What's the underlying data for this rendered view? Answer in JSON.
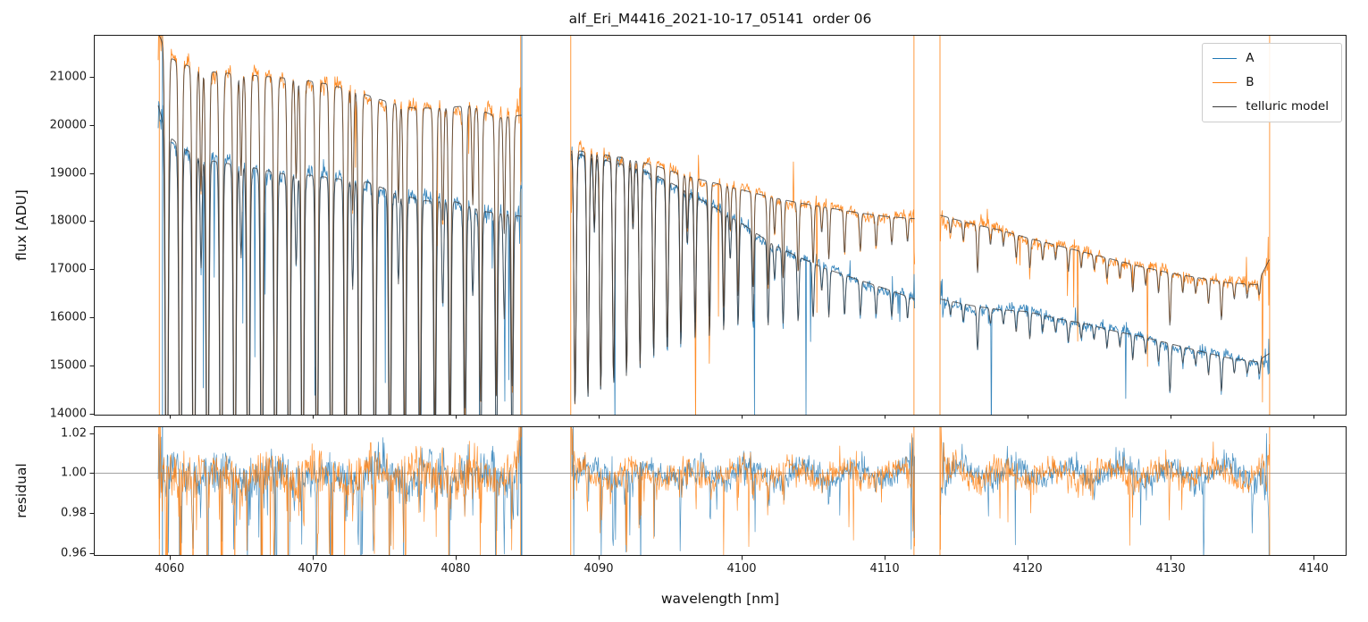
{
  "chart_data": {
    "type": "line",
    "title": "alf_Eri_M4416_2021-10-17_05141  order 06",
    "xlabel": "wavelength [nm]",
    "xlim": [
      4054.7,
      4142.3
    ],
    "xticks": [
      {
        "v": 4060,
        "label": "4060"
      },
      {
        "v": 4070,
        "label": "4070"
      },
      {
        "v": 4080,
        "label": "4080"
      },
      {
        "v": 4090,
        "label": "4090"
      },
      {
        "v": 4100,
        "label": "4100"
      },
      {
        "v": 4110,
        "label": "4110"
      },
      {
        "v": 4120,
        "label": "4120"
      },
      {
        "v": 4130,
        "label": "4130"
      },
      {
        "v": 4140,
        "label": "4140"
      }
    ],
    "panels": [
      {
        "ylabel": "flux [ADU]",
        "ylim": [
          13960,
          21870
        ],
        "yticks": [
          {
            "v": 14000,
            "label": "14000"
          },
          {
            "v": 15000,
            "label": "15000"
          },
          {
            "v": 16000,
            "label": "16000"
          },
          {
            "v": 17000,
            "label": "17000"
          },
          {
            "v": 18000,
            "label": "18000"
          },
          {
            "v": 19000,
            "label": "19000"
          },
          {
            "v": 20000,
            "label": "20000"
          },
          {
            "v": 21000,
            "label": "21000"
          }
        ]
      },
      {
        "ylabel": "residual",
        "ylim": [
          0.9585,
          1.0235
        ],
        "yticks": [
          {
            "v": 0.96,
            "label": "0.96"
          },
          {
            "v": 0.98,
            "label": "0.98"
          },
          {
            "v": 1.0,
            "label": "1.00"
          },
          {
            "v": 1.02,
            "label": "1.02"
          }
        ],
        "hline": 1.0,
        "hline_color": "#888888"
      }
    ],
    "legend": [
      {
        "label": "A",
        "color": "#1f77b4"
      },
      {
        "label": "B",
        "color": "#ff7f0e"
      },
      {
        "label": "telluric model",
        "color": "#3a3a3a"
      }
    ],
    "segments": [
      {
        "x0": 4059.2,
        "x1": 4084.6
      },
      {
        "x0": 4088.1,
        "x1": 4112.1
      },
      {
        "x0": 4113.9,
        "x1": 4136.9
      }
    ],
    "series": [
      {
        "name": "A",
        "color": "#1f77b4",
        "continuum": [
          [
            4059.2,
            20400
          ],
          [
            4059.8,
            19800
          ],
          [
            4061,
            19500
          ],
          [
            4063,
            19250
          ],
          [
            4066,
            19100
          ],
          [
            4068,
            18980
          ],
          [
            4070,
            18950
          ],
          [
            4072,
            18870
          ],
          [
            4074,
            18800
          ],
          [
            4076,
            18550
          ],
          [
            4078,
            18420
          ],
          [
            4080,
            18400
          ],
          [
            4082,
            18200
          ],
          [
            4084.6,
            18100
          ],
          [
            4088.1,
            19420
          ],
          [
            4090,
            19300
          ],
          [
            4092,
            19150
          ],
          [
            4094,
            18950
          ],
          [
            4096,
            18650
          ],
          [
            4098,
            18300
          ],
          [
            4100,
            17950
          ],
          [
            4102,
            17550
          ],
          [
            4104,
            17250
          ],
          [
            4106,
            17000
          ],
          [
            4108,
            16800
          ],
          [
            4110,
            16600
          ],
          [
            4112.1,
            16380
          ],
          [
            4113.9,
            16380
          ],
          [
            4116,
            16250
          ],
          [
            4118,
            16160
          ],
          [
            4120,
            16120
          ],
          [
            4122,
            15980
          ],
          [
            4124,
            15870
          ],
          [
            4126,
            15720
          ],
          [
            4128,
            15600
          ],
          [
            4130,
            15450
          ],
          [
            4132,
            15300
          ],
          [
            4134,
            15160
          ],
          [
            4136,
            15080
          ],
          [
            4136.9,
            15250
          ]
        ]
      },
      {
        "name": "B",
        "color": "#ff7f0e",
        "continuum": [
          [
            4059.2,
            21900
          ],
          [
            4060,
            21400
          ],
          [
            4061,
            21250
          ],
          [
            4063,
            21100
          ],
          [
            4065,
            21050
          ],
          [
            4067,
            21000
          ],
          [
            4069,
            20950
          ],
          [
            4071,
            20850
          ],
          [
            4073,
            20700
          ],
          [
            4075,
            20500
          ],
          [
            4077,
            20350
          ],
          [
            4079,
            20350
          ],
          [
            4081,
            20400
          ],
          [
            4083,
            20150
          ],
          [
            4084.6,
            20200
          ],
          [
            4088.1,
            19480
          ],
          [
            4090,
            19400
          ],
          [
            4092,
            19300
          ],
          [
            4094,
            19150
          ],
          [
            4096,
            18950
          ],
          [
            4098,
            18800
          ],
          [
            4100,
            18650
          ],
          [
            4102,
            18500
          ],
          [
            4104,
            18380
          ],
          [
            4106,
            18280
          ],
          [
            4108,
            18180
          ],
          [
            4110,
            18100
          ],
          [
            4112.1,
            18050
          ],
          [
            4113.9,
            18120
          ],
          [
            4116,
            17950
          ],
          [
            4118,
            17820
          ],
          [
            4120,
            17650
          ],
          [
            4122,
            17500
          ],
          [
            4124,
            17350
          ],
          [
            4126,
            17200
          ],
          [
            4128,
            17050
          ],
          [
            4130,
            16920
          ],
          [
            4132,
            16820
          ],
          [
            4134,
            16720
          ],
          [
            4136,
            16680
          ],
          [
            4136.9,
            17200
          ]
        ]
      }
    ],
    "telluric_lines": [
      [
        4059.8,
        0.5
      ],
      [
        4060.75,
        0.48
      ],
      [
        4061.7,
        0.5
      ],
      [
        4062.65,
        0.46
      ],
      [
        4063.6,
        0.48
      ],
      [
        4064.55,
        0.45
      ],
      [
        4065.5,
        0.47
      ],
      [
        4066.45,
        0.44
      ],
      [
        4067.4,
        0.45
      ],
      [
        4068.35,
        0.43
      ],
      [
        4069.3,
        0.44
      ],
      [
        4070.3,
        0.42
      ],
      [
        4071.3,
        0.43
      ],
      [
        4072.3,
        0.41
      ],
      [
        4073.3,
        0.42
      ],
      [
        4074.35,
        0.4
      ],
      [
        4075.4,
        0.38
      ],
      [
        4076.45,
        0.36
      ],
      [
        4077.5,
        0.35
      ],
      [
        4078.55,
        0.33
      ],
      [
        4079.6,
        0.32
      ],
      [
        4080.65,
        0.31
      ],
      [
        4081.75,
        0.3
      ],
      [
        4082.85,
        0.29
      ],
      [
        4083.95,
        0.28
      ],
      [
        4062.2,
        0.12
      ],
      [
        4065.0,
        0.1
      ],
      [
        4068.85,
        0.1
      ],
      [
        4072.8,
        0.12
      ],
      [
        4076.0,
        0.1
      ],
      [
        4079.1,
        0.12
      ],
      [
        4081.2,
        0.1
      ],
      [
        4083.4,
        0.12
      ],
      [
        4088.35,
        0.27
      ],
      [
        4089.25,
        0.26
      ],
      [
        4090.15,
        0.25
      ],
      [
        4091.05,
        0.24
      ],
      [
        4091.95,
        0.23
      ],
      [
        4092.9,
        0.215
      ],
      [
        4093.85,
        0.2
      ],
      [
        4094.8,
        0.19
      ],
      [
        4095.75,
        0.175
      ],
      [
        4096.75,
        0.16
      ],
      [
        4097.75,
        0.15
      ],
      [
        4098.75,
        0.135
      ],
      [
        4099.75,
        0.12
      ],
      [
        4100.8,
        0.11
      ],
      [
        4101.85,
        0.1
      ],
      [
        4102.9,
        0.088
      ],
      [
        4103.95,
        0.078
      ],
      [
        4105.0,
        0.068
      ],
      [
        4106.1,
        0.058
      ],
      [
        4107.2,
        0.05
      ],
      [
        4108.3,
        0.043
      ],
      [
        4109.4,
        0.037
      ],
      [
        4110.5,
        0.032
      ],
      [
        4111.6,
        0.028
      ],
      [
        4089.7,
        0.08
      ],
      [
        4092.4,
        0.07
      ],
      [
        4096.2,
        0.06
      ],
      [
        4099.2,
        0.05
      ],
      [
        4102.3,
        0.04
      ],
      [
        4105.6,
        0.03
      ],
      [
        4114.6,
        0.018
      ],
      [
        4115.5,
        0.022
      ],
      [
        4116.5,
        0.055
      ],
      [
        4117.4,
        0.02
      ],
      [
        4118.3,
        0.018
      ],
      [
        4119.2,
        0.028
      ],
      [
        4120.15,
        0.035
      ],
      [
        4121.05,
        0.022
      ],
      [
        4121.95,
        0.018
      ],
      [
        4122.85,
        0.028
      ],
      [
        4123.75,
        0.02
      ],
      [
        4124.65,
        0.018
      ],
      [
        4125.55,
        0.025
      ],
      [
        4126.45,
        0.02
      ],
      [
        4127.35,
        0.034
      ],
      [
        4128.25,
        0.022
      ],
      [
        4129.15,
        0.028
      ],
      [
        4129.95,
        0.065
      ],
      [
        4130.85,
        0.022
      ],
      [
        4131.75,
        0.02
      ],
      [
        4132.65,
        0.03
      ],
      [
        4133.55,
        0.048
      ],
      [
        4134.45,
        0.02
      ],
      [
        4135.35,
        0.018
      ],
      [
        4136.2,
        0.02
      ]
    ],
    "edge_spikes": [
      {
        "x": 4059.28,
        "color": "#ff7f0e"
      },
      {
        "x": 4059.5,
        "color": "#1f77b4"
      },
      {
        "x": 4084.55,
        "color": "#ff7f0e"
      },
      {
        "x": 4084.63,
        "color": "#1f77b4"
      },
      {
        "x": 4088.05,
        "color": "#ff7f0e"
      },
      {
        "x": 4112.05,
        "color": "#ff7f0e"
      },
      {
        "x": 4113.87,
        "color": "#ff7f0e"
      },
      {
        "x": 4136.92,
        "color": "#ff7f0e"
      }
    ],
    "noise": {
      "seed": 7,
      "flux_sigma": [
        0.0045,
        0.003,
        0.0035
      ],
      "residual_sigma": [
        0.0055,
        0.0032,
        0.0036
      ]
    }
  }
}
